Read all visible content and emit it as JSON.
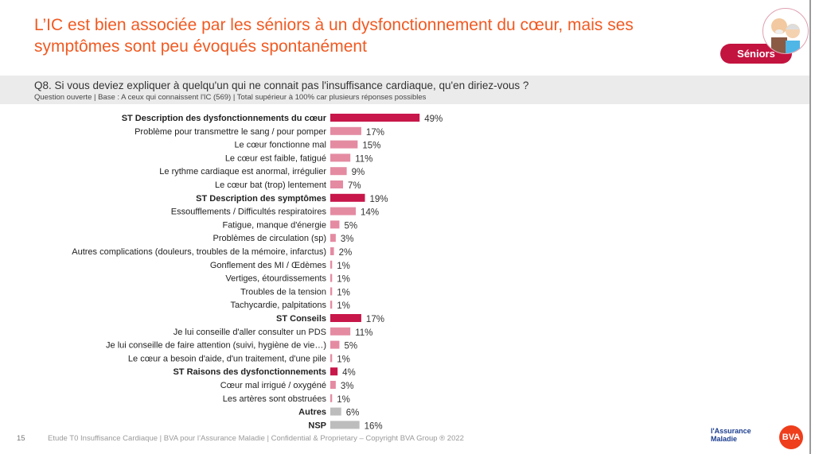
{
  "title": "L’IC est bien associée par les séniors à un dysfonctionnement du cœur, mais ses symptômes sont peu évoqués spontanément",
  "badge": "Séniors",
  "question": "Q8. Si vous deviez expliquer à quelqu'un qui ne connait pas l'insuffisance cardiaque, qu'en diriez-vous ?",
  "question_sub": "Question ouverte | Base : A ceux qui connaissent l'IC (569) | Total supérieur à 100% car plusieurs réponses possibles",
  "footer": "Etude T0 Insuffisance Cardiaque | BVA pour l’Assurance Maladie | Confidential & Proprietary – Copyright BVA Group ®  2022",
  "page_number": "15",
  "logos": {
    "assurance": "l'Assurance Maladie",
    "bva": "BVA"
  },
  "colors": {
    "category": "#c8174a",
    "item": "#e48ba2",
    "other": "#bdbdbd"
  },
  "chart_data": {
    "type": "bar",
    "orientation": "horizontal",
    "unit": "%",
    "xlim": [
      0,
      100
    ],
    "rows": [
      {
        "label": "ST Description des dysfonctionnements du cœur",
        "value": 49,
        "kind": "category"
      },
      {
        "label": "Problème pour transmettre le sang / pour pomper",
        "value": 17,
        "kind": "item"
      },
      {
        "label": "Le cœur fonctionne mal",
        "value": 15,
        "kind": "item"
      },
      {
        "label": "Le cœur est faible, fatigué",
        "value": 11,
        "kind": "item"
      },
      {
        "label": "Le rythme cardiaque est anormal, irrégulier",
        "value": 9,
        "kind": "item"
      },
      {
        "label": "Le cœur bat (trop) lentement",
        "value": 7,
        "kind": "item"
      },
      {
        "label": "ST Description des symptômes",
        "value": 19,
        "kind": "category"
      },
      {
        "label": "Essoufflements / Difficultés respiratoires",
        "value": 14,
        "kind": "item"
      },
      {
        "label": "Fatigue, manque d'énergie",
        "value": 5,
        "kind": "item"
      },
      {
        "label": "Problèmes de circulation (sp)",
        "value": 3,
        "kind": "item"
      },
      {
        "label": "Autres complications (douleurs, troubles de la mémoire, infarctus)",
        "value": 2,
        "kind": "item"
      },
      {
        "label": "Gonflement des MI / Œdèmes",
        "value": 1,
        "kind": "item"
      },
      {
        "label": "Vertiges, étourdissements",
        "value": 1,
        "kind": "item"
      },
      {
        "label": "Troubles de la tension",
        "value": 1,
        "kind": "item"
      },
      {
        "label": "Tachycardie, palpitations",
        "value": 1,
        "kind": "item"
      },
      {
        "label": "ST Conseils",
        "value": 17,
        "kind": "category"
      },
      {
        "label": "Je lui conseille d'aller consulter un PDS",
        "value": 11,
        "kind": "item"
      },
      {
        "label": "Je lui conseille de faire attention (suivi, hygiène de vie…)",
        "value": 5,
        "kind": "item"
      },
      {
        "label": "Le cœur a besoin d'aide, d'un traitement, d'une pile",
        "value": 1,
        "kind": "item"
      },
      {
        "label": "ST Raisons des dysfonctionnements",
        "value": 4,
        "kind": "category"
      },
      {
        "label": "Cœur mal irrigué / oxygéné",
        "value": 3,
        "kind": "item"
      },
      {
        "label": "Les artères sont obstruées",
        "value": 1,
        "kind": "item"
      },
      {
        "label": "Autres",
        "value": 6,
        "kind": "other"
      },
      {
        "label": "NSP",
        "value": 16,
        "kind": "other"
      }
    ]
  }
}
